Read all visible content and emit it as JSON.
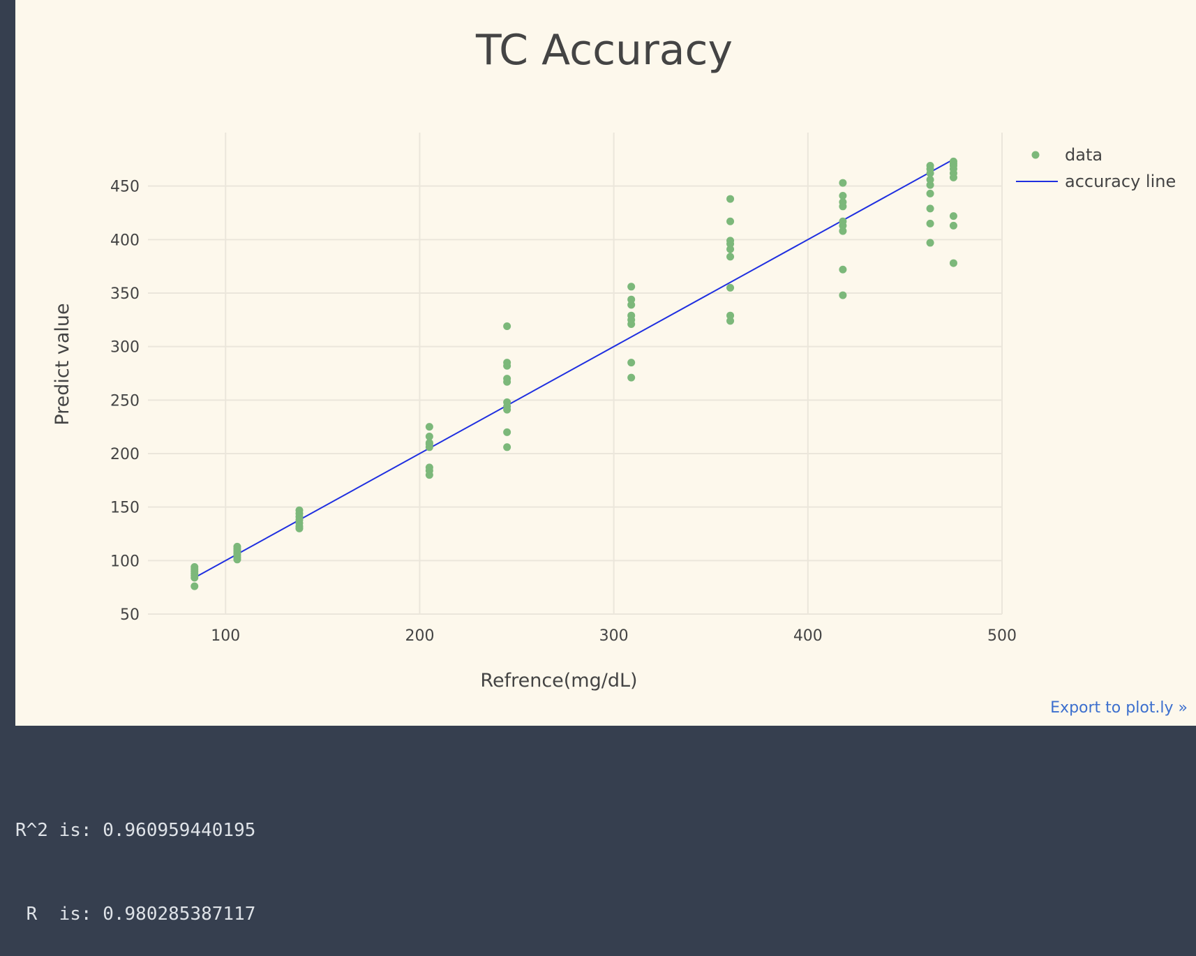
{
  "export_label": "Export to plot.ly »",
  "output": {
    "line1": "R^2 is: 0.960959440195",
    "line2": " R  is: 0.980285387117"
  },
  "colors": {
    "background": "#363f4f",
    "plot_bg": "#fdf8ec",
    "data_points": "#7cb87a",
    "accuracy_line": "#1f2fe0",
    "grid": "#ebe6db",
    "text": "#444444",
    "link": "#3c6fce"
  },
  "chart_data": {
    "type": "scatter",
    "title": "TC Accuracy",
    "xlabel": "Refrence(mg/dL)",
    "ylabel": "Predict value",
    "xlim": [
      60,
      500
    ],
    "ylim": [
      50,
      500
    ],
    "x_ticks": [
      100,
      200,
      300,
      400,
      500
    ],
    "y_ticks": [
      50,
      100,
      150,
      200,
      250,
      300,
      350,
      400,
      450
    ],
    "grid": true,
    "legend_position": "top-right",
    "series": [
      {
        "name": "data",
        "mode": "markers",
        "points": [
          [
            84,
            76
          ],
          [
            84,
            84
          ],
          [
            84,
            86
          ],
          [
            84,
            88
          ],
          [
            84,
            90
          ],
          [
            84,
            92
          ],
          [
            84,
            94
          ],
          [
            106,
            101
          ],
          [
            106,
            103
          ],
          [
            106,
            105
          ],
          [
            106,
            107
          ],
          [
            106,
            109
          ],
          [
            106,
            111
          ],
          [
            106,
            113
          ],
          [
            138,
            130
          ],
          [
            138,
            132
          ],
          [
            138,
            135
          ],
          [
            138,
            138
          ],
          [
            138,
            141
          ],
          [
            138,
            144
          ],
          [
            138,
            147
          ],
          [
            205,
            180
          ],
          [
            205,
            184
          ],
          [
            205,
            187
          ],
          [
            205,
            206
          ],
          [
            205,
            209
          ],
          [
            205,
            210
          ],
          [
            205,
            216
          ],
          [
            205,
            225
          ],
          [
            245,
            206
          ],
          [
            245,
            220
          ],
          [
            245,
            241
          ],
          [
            245,
            244
          ],
          [
            245,
            248
          ],
          [
            245,
            267
          ],
          [
            245,
            270
          ],
          [
            245,
            282
          ],
          [
            245,
            285
          ],
          [
            245,
            319
          ],
          [
            309,
            271
          ],
          [
            309,
            285
          ],
          [
            309,
            321
          ],
          [
            309,
            325
          ],
          [
            309,
            329
          ],
          [
            309,
            339
          ],
          [
            309,
            344
          ],
          [
            309,
            356
          ],
          [
            360,
            324
          ],
          [
            360,
            329
          ],
          [
            360,
            355
          ],
          [
            360,
            384
          ],
          [
            360,
            391
          ],
          [
            360,
            396
          ],
          [
            360,
            399
          ],
          [
            360,
            417
          ],
          [
            360,
            438
          ],
          [
            418,
            348
          ],
          [
            418,
            372
          ],
          [
            418,
            408
          ],
          [
            418,
            413
          ],
          [
            418,
            417
          ],
          [
            418,
            431
          ],
          [
            418,
            435
          ],
          [
            418,
            441
          ],
          [
            418,
            453
          ],
          [
            463,
            397
          ],
          [
            463,
            415
          ],
          [
            463,
            429
          ],
          [
            463,
            443
          ],
          [
            463,
            451
          ],
          [
            463,
            456
          ],
          [
            463,
            462
          ],
          [
            463,
            466
          ],
          [
            463,
            469
          ],
          [
            475,
            378
          ],
          [
            475,
            413
          ],
          [
            475,
            422
          ],
          [
            475,
            458
          ],
          [
            475,
            462
          ],
          [
            475,
            466
          ],
          [
            475,
            469
          ],
          [
            475,
            471
          ],
          [
            475,
            473
          ]
        ]
      },
      {
        "name": "accuracy line",
        "mode": "lines",
        "points": [
          [
            84,
            84
          ],
          [
            475,
            475
          ]
        ]
      }
    ]
  }
}
